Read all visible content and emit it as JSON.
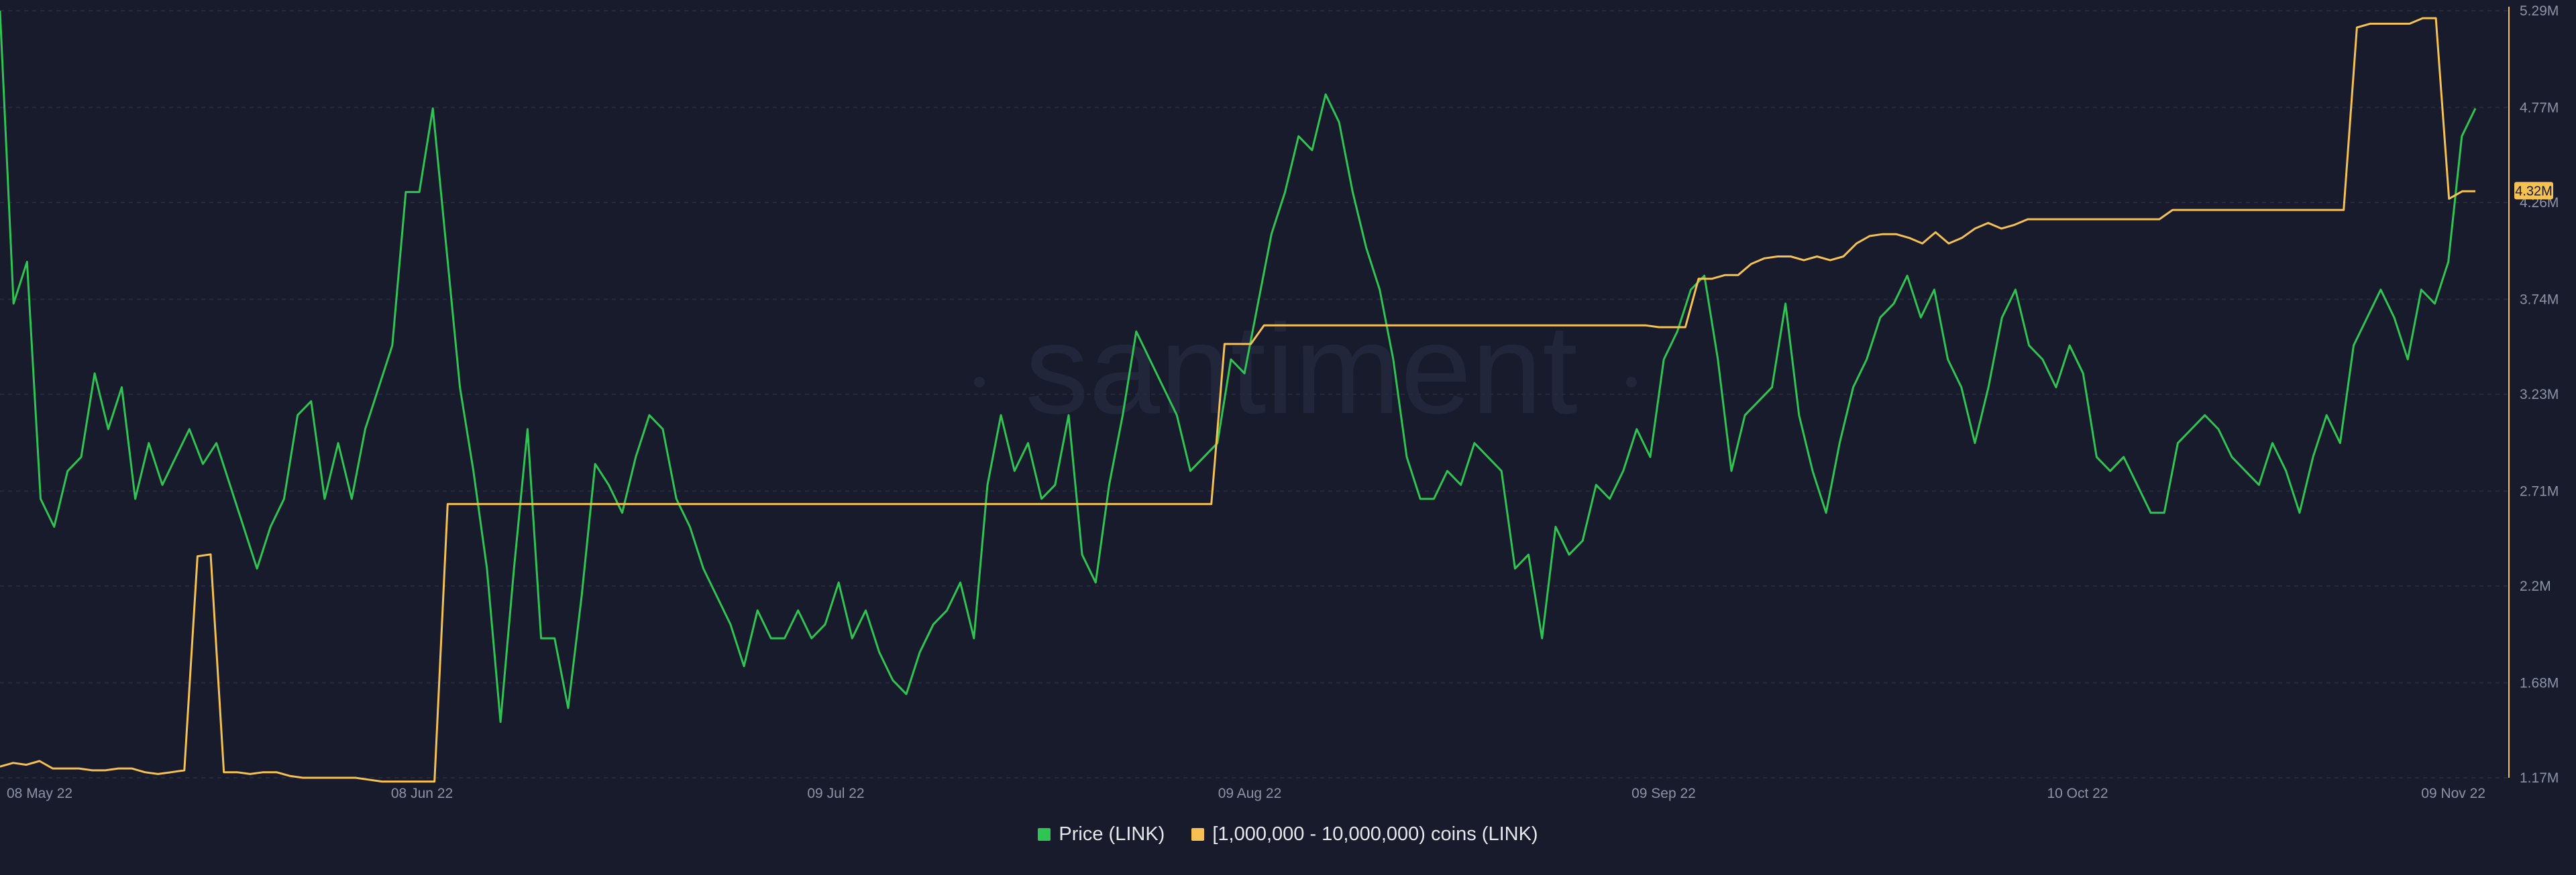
{
  "chart_data": {
    "type": "line",
    "watermark": "santiment",
    "x_ticks": [
      "08 May 22",
      "08 Jun 22",
      "09 Jul 22",
      "09 Aug 22",
      "09 Sep 22",
      "10 Oct 22",
      "09 Nov 22"
    ],
    "y_ticks": [
      "1.17M",
      "1.68M",
      "2.2M",
      "2.71M",
      "3.23M",
      "3.74M",
      "4.26M",
      "4.77M",
      "5.29M"
    ],
    "ylim": [
      1.17,
      5.29
    ],
    "grid": true,
    "legend_position": "bottom-center",
    "current_value_label": "4.32M",
    "series": [
      {
        "name": "Price (LINK)",
        "color": "#2fc552",
        "axis": "hidden",
        "ylim": [
          5.0,
          10.5
        ],
        "values": [
          10.5,
          8.4,
          8.7,
          7.0,
          6.8,
          7.2,
          7.3,
          7.9,
          7.5,
          7.8,
          7.0,
          7.4,
          7.1,
          7.3,
          7.5,
          7.25,
          7.4,
          7.1,
          6.8,
          6.5,
          6.8,
          7.0,
          7.6,
          7.7,
          7.0,
          7.4,
          7.0,
          7.5,
          7.8,
          8.1,
          9.2,
          9.2,
          9.8,
          8.8,
          7.8,
          7.2,
          6.5,
          5.4,
          6.5,
          7.5,
          6.0,
          6.0,
          5.5,
          6.3,
          7.25,
          7.1,
          6.9,
          7.3,
          7.6,
          7.5,
          7.0,
          6.8,
          6.5,
          6.3,
          6.1,
          5.8,
          6.2,
          6.0,
          6.0,
          6.2,
          6.0,
          6.1,
          6.4,
          6.0,
          6.2,
          5.9,
          5.7,
          5.6,
          5.9,
          6.1,
          6.2,
          6.4,
          6.0,
          7.1,
          7.6,
          7.2,
          7.4,
          7.0,
          7.1,
          7.6,
          6.6,
          6.4,
          7.1,
          7.6,
          8.2,
          8.0,
          7.8,
          7.6,
          7.2,
          7.3,
          7.4,
          8.0,
          7.9,
          8.4,
          8.9,
          9.2,
          9.6,
          9.5,
          9.9,
          9.7,
          9.2,
          8.8,
          8.5,
          8.0,
          7.3,
          7.0,
          7.0,
          7.2,
          7.1,
          7.4,
          7.3,
          7.2,
          6.5,
          6.6,
          6.0,
          6.8,
          6.6,
          6.7,
          7.1,
          7.0,
          7.2,
          7.5,
          7.3,
          8.0,
          8.2,
          8.5,
          8.6,
          8.0,
          7.2,
          7.6,
          7.7,
          7.8,
          8.4,
          7.6,
          7.2,
          6.9,
          7.4,
          7.8,
          8.0,
          8.3,
          8.4,
          8.6,
          8.3,
          8.5,
          8.0,
          7.8,
          7.4,
          7.8,
          8.3,
          8.5,
          8.1,
          8.0,
          7.8,
          8.1,
          7.9,
          7.3,
          7.2,
          7.3,
          7.1,
          6.9,
          6.9,
          7.4,
          7.5,
          7.6,
          7.5,
          7.3,
          7.2,
          7.1,
          7.4,
          7.2,
          6.9,
          7.3,
          7.6,
          7.4,
          8.1,
          8.3,
          8.5,
          8.3,
          8.0,
          8.5,
          8.4,
          8.7,
          9.6,
          9.8
        ]
      },
      {
        "name": "[1,000,000 - 10,000,000) coins (LINK)",
        "color": "#f5c152",
        "axis": "right",
        "values": [
          1.23,
          1.25,
          1.24,
          1.26,
          1.22,
          1.22,
          1.22,
          1.21,
          1.21,
          1.22,
          1.22,
          1.2,
          1.19,
          1.2,
          1.21,
          2.36,
          2.37,
          1.2,
          1.2,
          1.19,
          1.2,
          1.2,
          1.18,
          1.17,
          1.17,
          1.17,
          1.17,
          1.17,
          1.16,
          1.15,
          1.15,
          1.15,
          1.15,
          1.15,
          2.64,
          2.64,
          2.64,
          2.64,
          2.64,
          2.64,
          2.64,
          2.64,
          2.64,
          2.64,
          2.64,
          2.64,
          2.64,
          2.64,
          2.64,
          2.64,
          2.64,
          2.64,
          2.64,
          2.64,
          2.64,
          2.64,
          2.64,
          2.64,
          2.64,
          2.64,
          2.64,
          2.64,
          2.64,
          2.64,
          2.64,
          2.64,
          2.64,
          2.64,
          2.64,
          2.64,
          2.64,
          2.64,
          2.64,
          2.64,
          2.64,
          2.64,
          2.64,
          2.64,
          2.64,
          2.64,
          2.64,
          2.64,
          2.64,
          2.64,
          2.64,
          2.64,
          2.64,
          2.64,
          2.64,
          2.64,
          2.64,
          2.64,
          2.64,
          3.5,
          3.5,
          3.5,
          3.6,
          3.6,
          3.6,
          3.6,
          3.6,
          3.6,
          3.6,
          3.6,
          3.6,
          3.6,
          3.6,
          3.6,
          3.6,
          3.6,
          3.6,
          3.6,
          3.6,
          3.6,
          3.6,
          3.6,
          3.6,
          3.6,
          3.6,
          3.6,
          3.6,
          3.6,
          3.6,
          3.6,
          3.6,
          3.6,
          3.59,
          3.59,
          3.59,
          3.85,
          3.85,
          3.87,
          3.87,
          3.93,
          3.96,
          3.97,
          3.97,
          3.95,
          3.97,
          3.95,
          3.97,
          4.04,
          4.08,
          4.09,
          4.09,
          4.07,
          4.04,
          4.1,
          4.04,
          4.07,
          4.12,
          4.15,
          4.12,
          4.14,
          4.17,
          4.17,
          4.17,
          4.17,
          4.17,
          4.17,
          4.17,
          4.17,
          4.17,
          4.17,
          4.17,
          4.22,
          4.22,
          4.22,
          4.22,
          4.22,
          4.22,
          4.22,
          4.22,
          4.22,
          4.22,
          4.22,
          4.22,
          4.22,
          4.22,
          5.2,
          5.22,
          5.22,
          5.22,
          5.22,
          5.25,
          5.25,
          4.28,
          4.32,
          4.32
        ]
      }
    ]
  }
}
